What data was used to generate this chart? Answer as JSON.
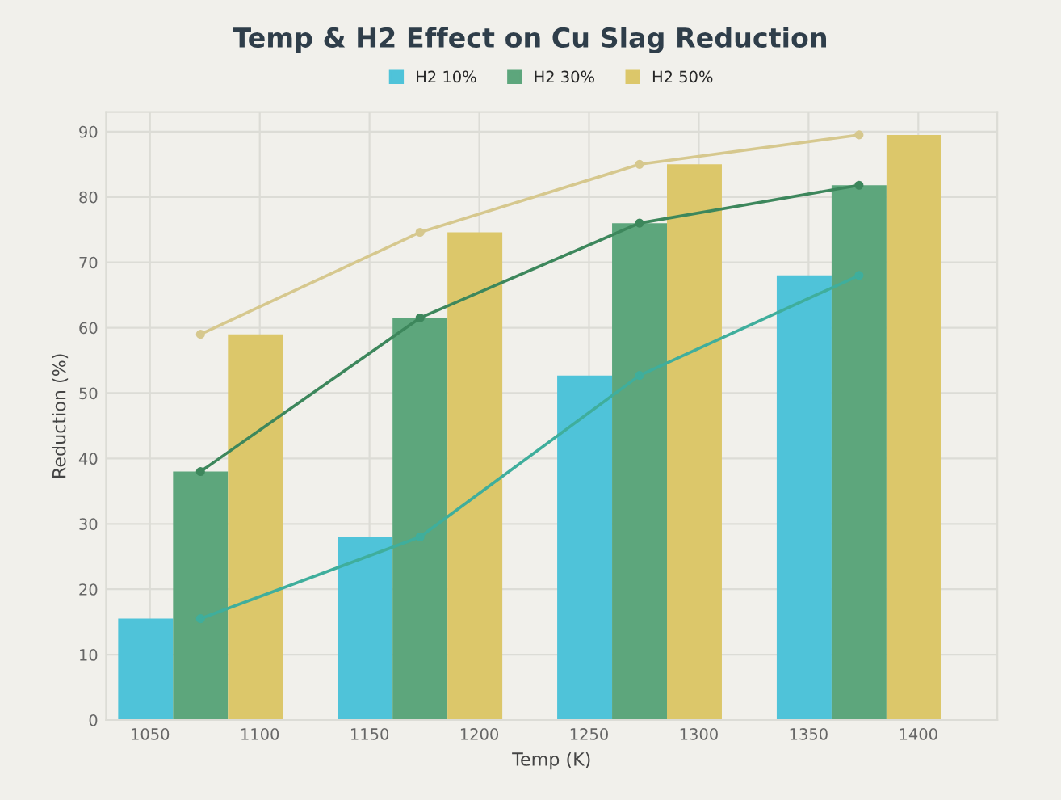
{
  "chart_data": {
    "type": "bar",
    "title": "Temp & H2 Effect on Cu Slag Reduction",
    "xlabel": "Temp (K)",
    "ylabel": "Reduction (%)",
    "series": [
      {
        "name": "H2 10%",
        "color": "#4fc3d9",
        "x": [
          1048,
          1148,
          1248,
          1348
        ],
        "values": [
          15.5,
          28,
          52.7,
          68
        ]
      },
      {
        "name": "H2 30%",
        "color": "#5da67c",
        "x": [
          1073,
          1173,
          1273,
          1373
        ],
        "values": [
          38,
          61.5,
          76,
          81.8
        ]
      },
      {
        "name": "H2 50%",
        "color": "#dcc76a",
        "x": [
          1098,
          1198,
          1298,
          1398
        ],
        "values": [
          59,
          74.6,
          85,
          89.5
        ]
      },
      {
        "type": "line",
        "color": "#3fae9c",
        "x": [
          1073,
          1173,
          1273,
          1373
        ],
        "values": [
          15.5,
          28,
          52.7,
          68
        ]
      },
      {
        "type": "line",
        "color": "#3d875c",
        "x": [
          1073,
          1173,
          1273,
          1373
        ],
        "values": [
          38,
          61.5,
          76,
          81.8
        ]
      },
      {
        "type": "line",
        "color": "#d6c88e",
        "x": [
          1073,
          1173,
          1273,
          1373
        ],
        "values": [
          59,
          74.6,
          85,
          89.5
        ]
      }
    ],
    "xlim": [
      1030,
      1436
    ],
    "xticks": [
      1050,
      1100,
      1150,
      1200,
      1250,
      1300,
      1350,
      1400
    ],
    "ylim": [
      0,
      93
    ],
    "yticks": [
      0,
      10,
      20,
      30,
      40,
      50,
      60,
      70,
      80,
      90
    ],
    "grid": true,
    "legend": "top",
    "marker": "circle"
  }
}
